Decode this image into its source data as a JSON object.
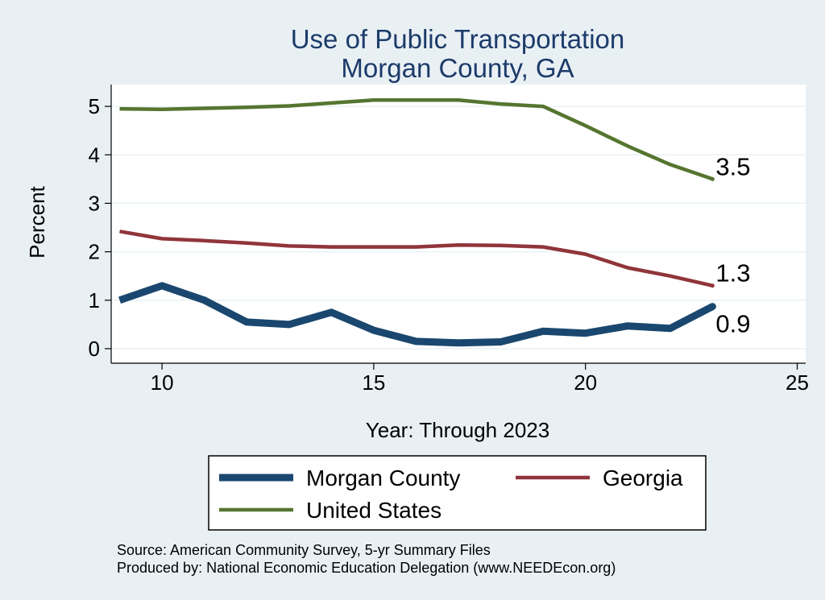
{
  "chart_data": {
    "type": "line",
    "title": [
      "Use of Public Transportation",
      "Morgan County, GA"
    ],
    "xlabel": "Year: Through 2023",
    "ylabel": "Percent",
    "xlim": [
      8.8,
      25.2
    ],
    "ylim": [
      -0.3,
      5.45
    ],
    "x_ticks": [
      10,
      15,
      20,
      25
    ],
    "y_ticks": [
      0,
      1,
      2,
      3,
      4,
      5
    ],
    "grid": true,
    "legend_position": "bottom",
    "x": [
      9,
      10,
      11,
      12,
      13,
      14,
      15,
      16,
      17,
      18,
      19,
      20,
      21,
      22,
      23
    ],
    "series": [
      {
        "name": "Morgan County",
        "color": "#1a476f",
        "width": 9,
        "values": [
          1.0,
          1.3,
          1.0,
          0.55,
          0.5,
          0.75,
          0.38,
          0.15,
          0.12,
          0.14,
          0.36,
          0.32,
          0.47,
          0.42,
          0.87
        ],
        "end_label": "0.9"
      },
      {
        "name": "Georgia",
        "color": "#90353b",
        "width": 4.5,
        "values": [
          2.42,
          2.27,
          2.23,
          2.18,
          2.12,
          2.1,
          2.1,
          2.1,
          2.14,
          2.13,
          2.1,
          1.95,
          1.67,
          1.5,
          1.3
        ],
        "end_label": "1.3"
      },
      {
        "name": "United States",
        "color": "#55752f",
        "width": 4.5,
        "values": [
          4.95,
          4.94,
          4.96,
          4.98,
          5.01,
          5.07,
          5.13,
          5.13,
          5.13,
          5.05,
          5.0,
          4.6,
          4.18,
          3.8,
          3.5
        ],
        "end_label": "3.5"
      }
    ],
    "notes": [
      "Source: American Community Survey, 5-yr Summary Files",
      "Produced by: National Economic Education Delegation (www.NEEDEcon.org)"
    ]
  }
}
